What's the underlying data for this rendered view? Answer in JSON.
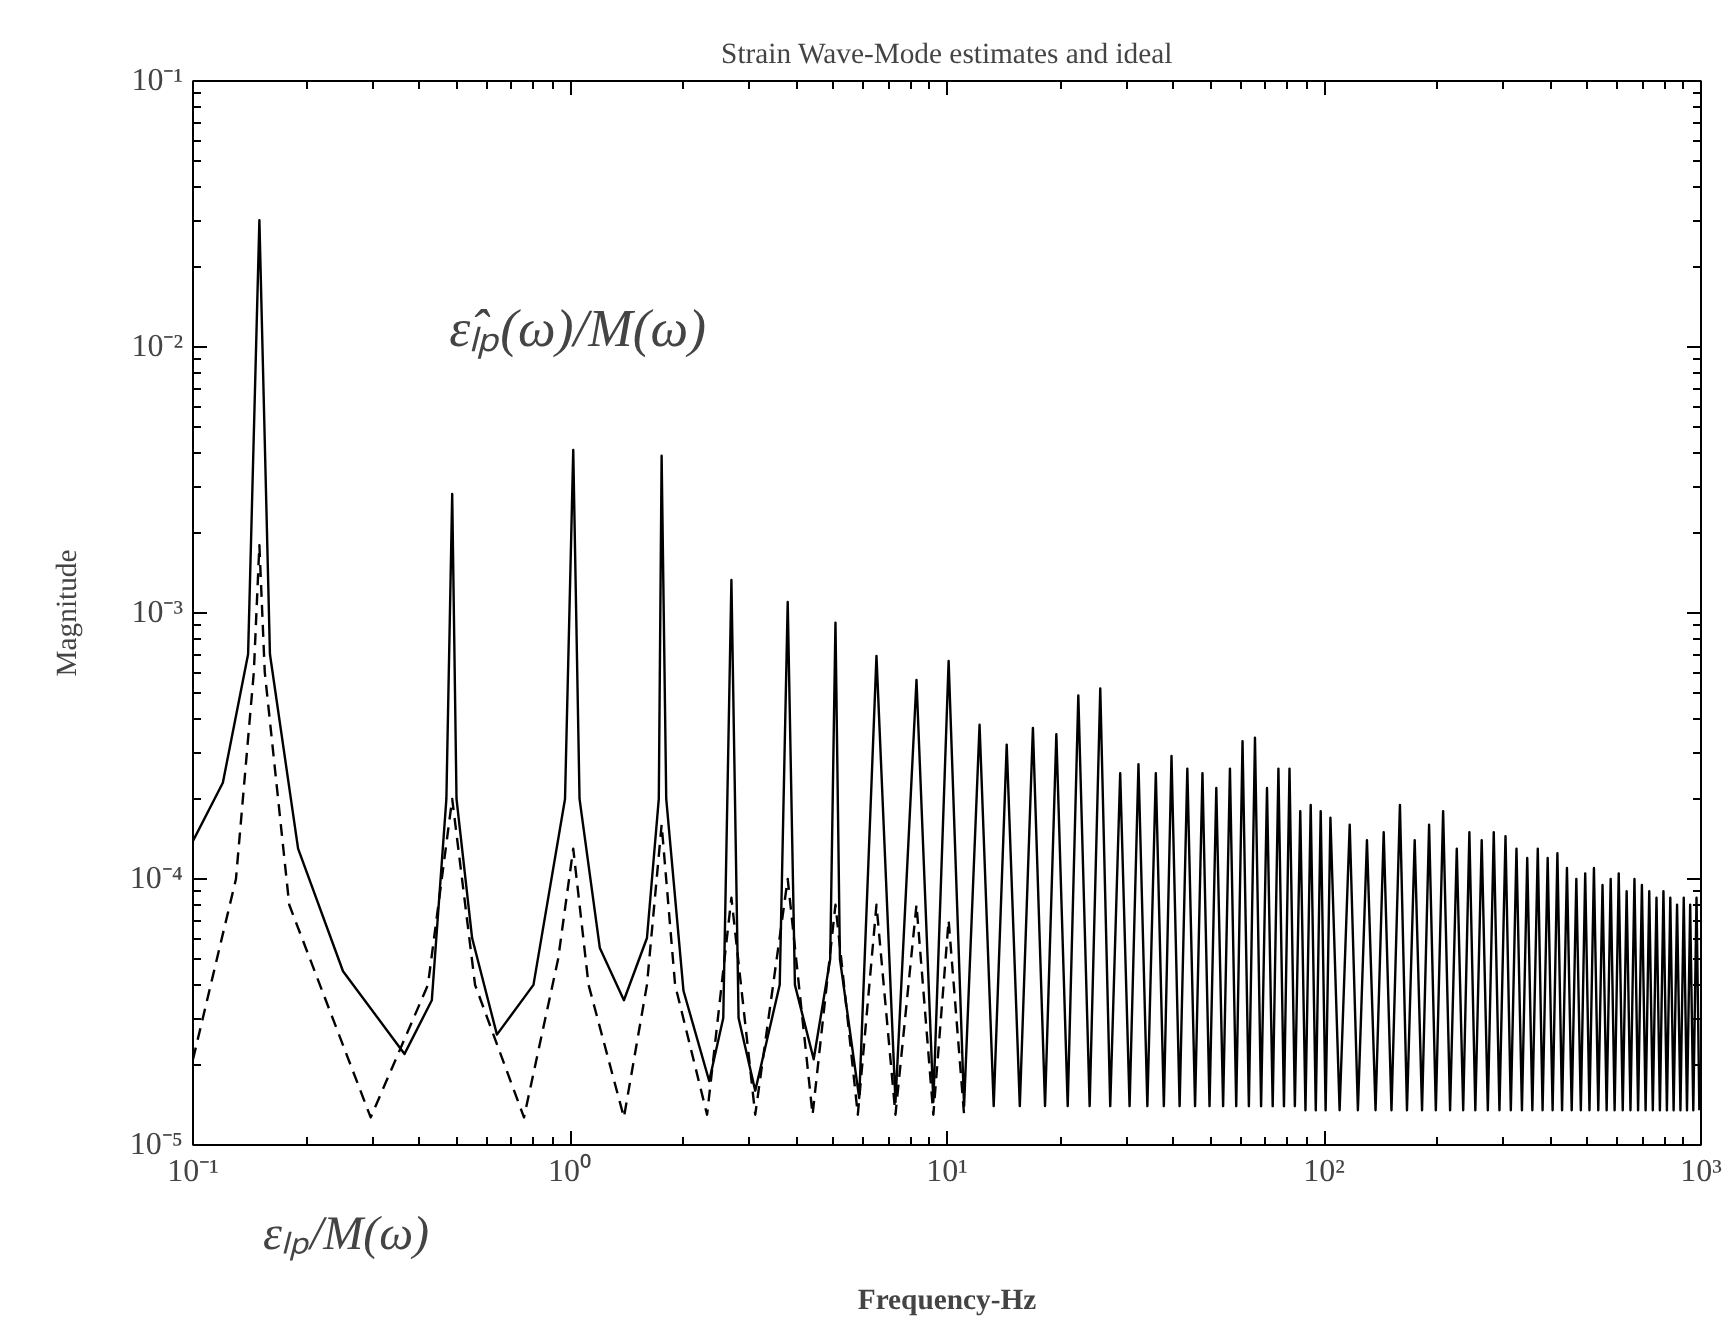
{
  "chart_data": {
    "type": "line",
    "title": "Strain Wave-Mode estimates and ideal",
    "xlabel": "Frequency-Hz",
    "ylabel": "Magnitude",
    "log": "xy",
    "grid": false,
    "marker": "none",
    "xlim": [
      0.1,
      1000
    ],
    "ylim": [
      1e-05,
      0.1
    ],
    "xticks": [
      {
        "value": 0.1,
        "label": "10⁻¹"
      },
      {
        "value": 1,
        "label": "10⁰"
      },
      {
        "value": 10,
        "label": "10¹"
      },
      {
        "value": 100,
        "label": "10²"
      },
      {
        "value": 1000,
        "label": "10³"
      }
    ],
    "yticks": [
      {
        "value": 1e-05,
        "label": "10⁻⁵"
      },
      {
        "value": 0.0001,
        "label": "10⁻⁴"
      },
      {
        "value": 0.001,
        "label": "10⁻³"
      },
      {
        "value": 0.01,
        "label": "10⁻²"
      },
      {
        "value": 0.1,
        "label": "10⁻¹"
      }
    ],
    "annotations": [
      "ε̂ₗₚ(ω)/M(ω)",
      "εₗₚ/M(ω)"
    ],
    "series": [
      {
        "color": "#000000",
        "line_style": "solid",
        "x": [
          0.1,
          0.12,
          0.14,
          0.15,
          0.16,
          0.19,
          0.25,
          0.364,
          0.43,
          0.47,
          0.487,
          0.5,
          0.55,
          0.64,
          0.8,
          0.97,
          1.02,
          1.06,
          1.2,
          1.39,
          1.6,
          1.72,
          1.75,
          1.8,
          2.0,
          2.34,
          2.55,
          2.68,
          2.8,
          3.1,
          3.6,
          3.78,
          3.95,
          4.43,
          4.9,
          5.06,
          5.2,
          5.85,
          6.5,
          7.3,
          8.3,
          9.2,
          10.1,
          11.1,
          12.2,
          13.3,
          14.4,
          15.6,
          16.9,
          18.2,
          19.5,
          20.9,
          22.3,
          23.9,
          25.5,
          27.1,
          28.8,
          30.5,
          32.2,
          34,
          35.8,
          37.6,
          39.4,
          41.4,
          43.4,
          45.5,
          47.6,
          49.7,
          51.8,
          54,
          56.3,
          58.5,
          60.8,
          63.2,
          65.6,
          68.1,
          70.6,
          73.1,
          75.7,
          78.3,
          81,
          83.7,
          86.5,
          89.3,
          92.2,
          95.1,
          98,
          101,
          104,
          110,
          117,
          123,
          130,
          137,
          144,
          151,
          159,
          166,
          174,
          182,
          190,
          198,
          207,
          216,
          225,
          234,
          243,
          252,
          262,
          272,
          282,
          292,
          303,
          313,
          324,
          335,
          346,
          357,
          369,
          380,
          392,
          404,
          416,
          428,
          441,
          454,
          467,
          480,
          493,
          506,
          520,
          534,
          548,
          562,
          576,
          590,
          605,
          620,
          635,
          650,
          666,
          681,
          697,
          713,
          729,
          745,
          762,
          778,
          795,
          812,
          829,
          846,
          864,
          882,
          900,
          918,
          936,
          954,
          973,
          990
        ],
        "values": [
          0.000139,
          0.00023,
          0.0007,
          0.03,
          0.0007,
          0.00013,
          4.5e-05,
          2.2e-05,
          3.5e-05,
          0.0002,
          0.0028,
          0.0002,
          6e-05,
          2.6e-05,
          4e-05,
          0.0002,
          0.0041,
          0.0002,
          5.5e-05,
          3.5e-05,
          6e-05,
          0.0002,
          0.0039,
          0.0002,
          3.8e-05,
          1.74e-05,
          3e-05,
          0.00133,
          3e-05,
          1.6e-05,
          4e-05,
          0.0011,
          4e-05,
          2.1e-05,
          5e-05,
          0.00092,
          5e-05,
          1.5e-05,
          0.00069,
          1.45e-05,
          0.00056,
          1.45e-05,
          0.00066,
          1.4e-05,
          0.00038,
          1.4e-05,
          0.00032,
          1.4e-05,
          0.00037,
          1.4e-05,
          0.00035,
          1.4e-05,
          0.00049,
          1.4e-05,
          0.00052,
          1.4e-05,
          0.00025,
          1.4e-05,
          0.00027,
          1.4e-05,
          0.00025,
          1.4e-05,
          0.00029,
          1.4e-05,
          0.00026,
          1.4e-05,
          0.00025,
          1.4e-05,
          0.00022,
          1.4e-05,
          0.00026,
          1.4e-05,
          0.00033,
          1.4e-05,
          0.00034,
          1.4e-05,
          0.00022,
          1.4e-05,
          0.00026,
          1.4e-05,
          0.00026,
          1.4e-05,
          0.00018,
          1.35e-05,
          0.00019,
          1.35e-05,
          0.00018,
          1.35e-05,
          0.00017,
          1.35e-05,
          0.00016,
          1.35e-05,
          0.00014,
          1.35e-05,
          0.00015,
          1.35e-05,
          0.00019,
          1.35e-05,
          0.00014,
          1.35e-05,
          0.00016,
          1.35e-05,
          0.00018,
          1.35e-05,
          0.00013,
          1.35e-05,
          0.00015,
          1.35e-05,
          0.00014,
          1.35e-05,
          0.00015,
          1.35e-05,
          0.000145,
          1.35e-05,
          0.00013,
          1.35e-05,
          0.00012,
          1.35e-05,
          0.00013,
          1.35e-05,
          0.00012,
          1.35e-05,
          0.000125,
          1.35e-05,
          0.00011,
          1.35e-05,
          0.0001,
          1.35e-05,
          0.000105,
          1.35e-05,
          0.00011,
          1.35e-05,
          9.5e-05,
          1.35e-05,
          0.0001,
          1.35e-05,
          0.000105,
          1.35e-05,
          9e-05,
          1.35e-05,
          0.0001,
          1.35e-05,
          9.5e-05,
          1.35e-05,
          9e-05,
          1.35e-05,
          8.5e-05,
          1.35e-05,
          9e-05,
          1.35e-05,
          8.5e-05,
          1.35e-05,
          8e-05,
          1.35e-05,
          8.5e-05,
          1.35e-05,
          8e-05,
          1.35e-05,
          8.5e-05,
          1.35e-05
        ]
      },
      {
        "color": "#000000",
        "line_style": "dashed",
        "x": [
          0.1,
          0.13,
          0.145,
          0.15,
          0.155,
          0.18,
          0.296,
          0.42,
          0.487,
          0.56,
          0.755,
          0.93,
          1.02,
          1.12,
          1.39,
          1.6,
          1.75,
          1.9,
          2.31,
          2.68,
          3.1,
          3.78,
          4.4,
          5.06,
          5.8,
          6.5,
          7.3,
          8.3,
          9.2,
          10.1,
          11.1
        ],
        "values": [
          2.1e-05,
          0.0001,
          0.0006,
          0.0018,
          0.0006,
          8e-05,
          1.27e-05,
          4e-05,
          0.0002,
          4e-05,
          1.27e-05,
          5e-05,
          0.00013,
          4e-05,
          1.27e-05,
          4e-05,
          0.00016,
          4e-05,
          1.3e-05,
          8.5e-05,
          1.3e-05,
          0.0001,
          1.3e-05,
          8e-05,
          1.3e-05,
          8e-05,
          1.3e-05,
          8e-05,
          1.3e-05,
          7e-05,
          1.3e-05
        ]
      }
    ]
  }
}
